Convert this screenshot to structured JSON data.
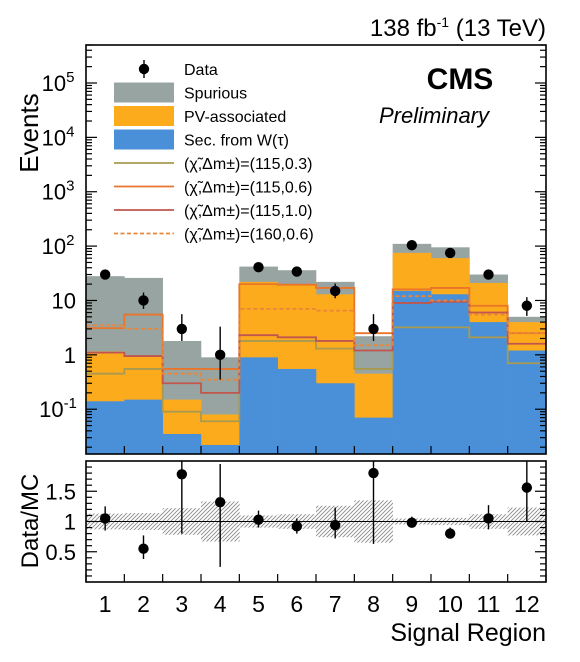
{
  "chart_data": [
    {
      "type": "bar",
      "header_label": "138 fb",
      "header_sup": "-1",
      "header_energy": " (13 TeV)",
      "brand": "CMS",
      "status": "Preliminary",
      "ylabel": "Events",
      "yscale": "log",
      "ylim": [
        0.015,
        500000
      ],
      "y_ticks": [
        {
          "value": 0.1,
          "base": "10",
          "exp": "-1"
        },
        {
          "value": 1,
          "base": "1",
          "exp": ""
        },
        {
          "value": 10,
          "base": "10",
          "exp": ""
        },
        {
          "value": 100,
          "base": "10",
          "exp": "2"
        },
        {
          "value": 1000,
          "base": "10",
          "exp": "3"
        },
        {
          "value": 10000,
          "base": "10",
          "exp": "4"
        },
        {
          "value": 100000,
          "base": "10",
          "exp": "5"
        }
      ],
      "categories": [
        "1",
        "2",
        "3",
        "4",
        "5",
        "6",
        "7",
        "8",
        "9",
        "10",
        "11",
        "12"
      ],
      "colors": {
        "sec": "#4a90d9",
        "pv": "#fcab1c",
        "spurious": "#98a4a1",
        "sig_115_03": "#a89a50",
        "sig_115_06": "#e8752a",
        "sig_115_10": "#c0564e",
        "sig_160_06": "#e8863a"
      },
      "series": [
        {
          "name": "Sec. from W(τ)",
          "values": [
            0.14,
            0.15,
            0.035,
            0.022,
            0.9,
            0.55,
            0.3,
            0.07,
            15,
            13,
            4,
            1.2
          ]
        },
        {
          "name": "PV-associated",
          "values": [
            1.15,
            0.95,
            0.15,
            0.08,
            22,
            20,
            13,
            0.45,
            75,
            60,
            21,
            4
          ]
        },
        {
          "name": "Spurious",
          "values": [
            28,
            26,
            1.8,
            0.9,
            42,
            36,
            22,
            2.2,
            110,
            95,
            30,
            5
          ]
        }
      ],
      "data": {
        "name": "Data",
        "values": [
          30,
          10,
          3,
          1,
          41,
          34,
          15,
          3,
          104,
          75,
          30,
          8
        ],
        "err_low": [
          25,
          7,
          1.8,
          0.35,
          35,
          28.5,
          11,
          1.8,
          93,
          66,
          24.7,
          5.2
        ],
        "err_high": [
          35.5,
          14,
          5.6,
          3.3,
          48,
          40,
          20.5,
          5.6,
          115,
          85,
          36,
          11.5
        ]
      },
      "signals": [
        {
          "name": "(χ̃,Δm±)=(115,0.3)",
          "color_key": "sig_115_03",
          "dashed": false,
          "values": [
            0.45,
            0.55,
            0.09,
            0.06,
            1.8,
            1.8,
            1.3,
            0.55,
            3.2,
            3.2,
            2.1,
            0.7
          ]
        },
        {
          "name": "(χ̃,Δm±)=(115,0.6)",
          "color_key": "sig_115_06",
          "dashed": false,
          "values": [
            3.1,
            5.5,
            0.55,
            0.55,
            20,
            19.5,
            17,
            2.5,
            16,
            17,
            8,
            2.5
          ]
        },
        {
          "name": "(χ̃,Δm±)=(115,1.0)",
          "color_key": "sig_115_10",
          "dashed": false,
          "values": [
            1.1,
            0.95,
            0.3,
            0.2,
            2.3,
            2.1,
            1.8,
            1.2,
            9,
            9.5,
            6,
            1.6
          ]
        },
        {
          "name": "(χ̃,Δm±)=(160,0.6)",
          "color_key": "sig_160_06",
          "dashed": true,
          "values": [
            3.5,
            3,
            0.45,
            0.35,
            7,
            7,
            6.5,
            1.5,
            12,
            10,
            5.5,
            2.5
          ]
        }
      ],
      "legend_labels": [
        "Data",
        "Spurious",
        "PV-associated",
        "Sec. from W(τ)"
      ],
      "legend_placement": "top-left"
    },
    {
      "type": "scatter",
      "ylabel": "Data/MC",
      "xlabel": "Signal Region",
      "ylim": [
        0,
        2
      ],
      "y_ticks": [
        "0.5",
        "1",
        "1.5"
      ],
      "categories": [
        "1",
        "2",
        "3",
        "4",
        "5",
        "6",
        "7",
        "8",
        "9",
        "10",
        "11",
        "12"
      ],
      "ratio": [
        1.05,
        0.55,
        1.78,
        1.32,
        1.03,
        0.92,
        0.94,
        1.8,
        0.98,
        0.8,
        1.05,
        1.56
      ],
      "ratio_err_low": [
        0.85,
        0.38,
        0.8,
        0.25,
        0.9,
        0.8,
        0.72,
        0.63,
        0.9,
        0.73,
        0.87,
        1.0
      ],
      "ratio_err_high": [
        1.25,
        0.77,
        2.0,
        1.95,
        1.18,
        1.05,
        1.23,
        2.0,
        1.08,
        0.9,
        1.27,
        2.0
      ],
      "unc_band": [
        0.13,
        0.14,
        0.22,
        0.33,
        0.1,
        0.12,
        0.26,
        0.35,
        0.05,
        0.06,
        0.12,
        0.23
      ]
    }
  ]
}
